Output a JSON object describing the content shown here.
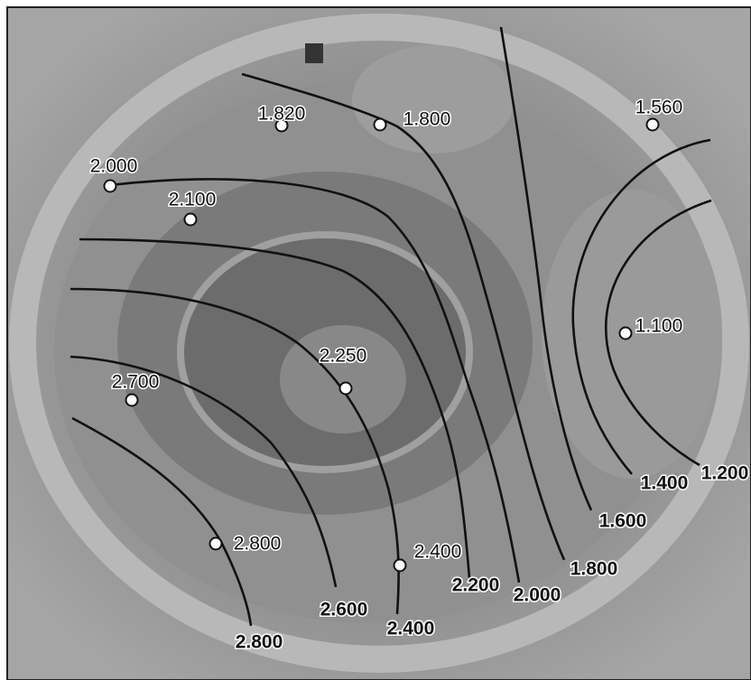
{
  "points": [
    {
      "label": "1.820"
    },
    {
      "label": "1.800"
    },
    {
      "label": "1.560"
    },
    {
      "label": "2.000"
    },
    {
      "label": "2.100"
    },
    {
      "label": "1.100"
    },
    {
      "label": "2.250"
    },
    {
      "label": "2.700"
    },
    {
      "label": "2.800"
    },
    {
      "label": "2.400"
    }
  ],
  "contours": [
    {
      "label": "1.200"
    },
    {
      "label": "1.400"
    },
    {
      "label": "1.600"
    },
    {
      "label": "1.800"
    },
    {
      "label": "2.000"
    },
    {
      "label": "2.200"
    },
    {
      "label": "2.400"
    },
    {
      "label": "2.600"
    },
    {
      "label": "2.800"
    }
  ]
}
